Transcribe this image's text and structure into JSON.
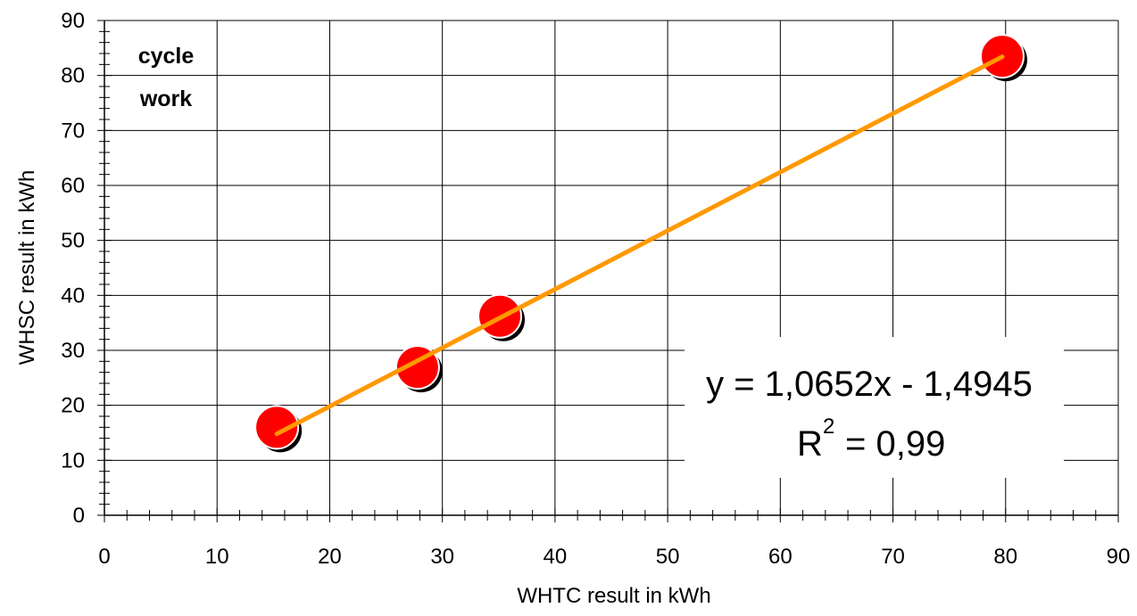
{
  "chart_data": {
    "type": "scatter",
    "xlabel": "WHTC result in kWh",
    "ylabel": "WHSC result in kWh",
    "xlim": [
      0,
      90
    ],
    "ylim": [
      0,
      90
    ],
    "xticks": [
      0,
      10,
      20,
      30,
      40,
      50,
      60,
      70,
      80,
      90
    ],
    "yticks": [
      0,
      10,
      20,
      30,
      40,
      50,
      60,
      70,
      80,
      90
    ],
    "grid": true,
    "annotation": {
      "line1": "cycle",
      "line2": "work"
    },
    "series": [
      {
        "points": [
          {
            "x": 15.3,
            "y": 16.0
          },
          {
            "x": 27.8,
            "y": 26.9
          },
          {
            "x": 35.1,
            "y": 36.2
          },
          {
            "x": 79.7,
            "y": 83.5
          }
        ],
        "color": "#ff0000"
      }
    ],
    "trendline": {
      "slope": 1.0652,
      "intercept": -1.4945,
      "x_range": [
        15.3,
        79.7
      ],
      "color": "#ff9900",
      "equation": "y = 1,0652x - 1,4945",
      "r2_base": "R",
      "r2_exp": "2",
      "r2_value": "= 0,99"
    }
  }
}
